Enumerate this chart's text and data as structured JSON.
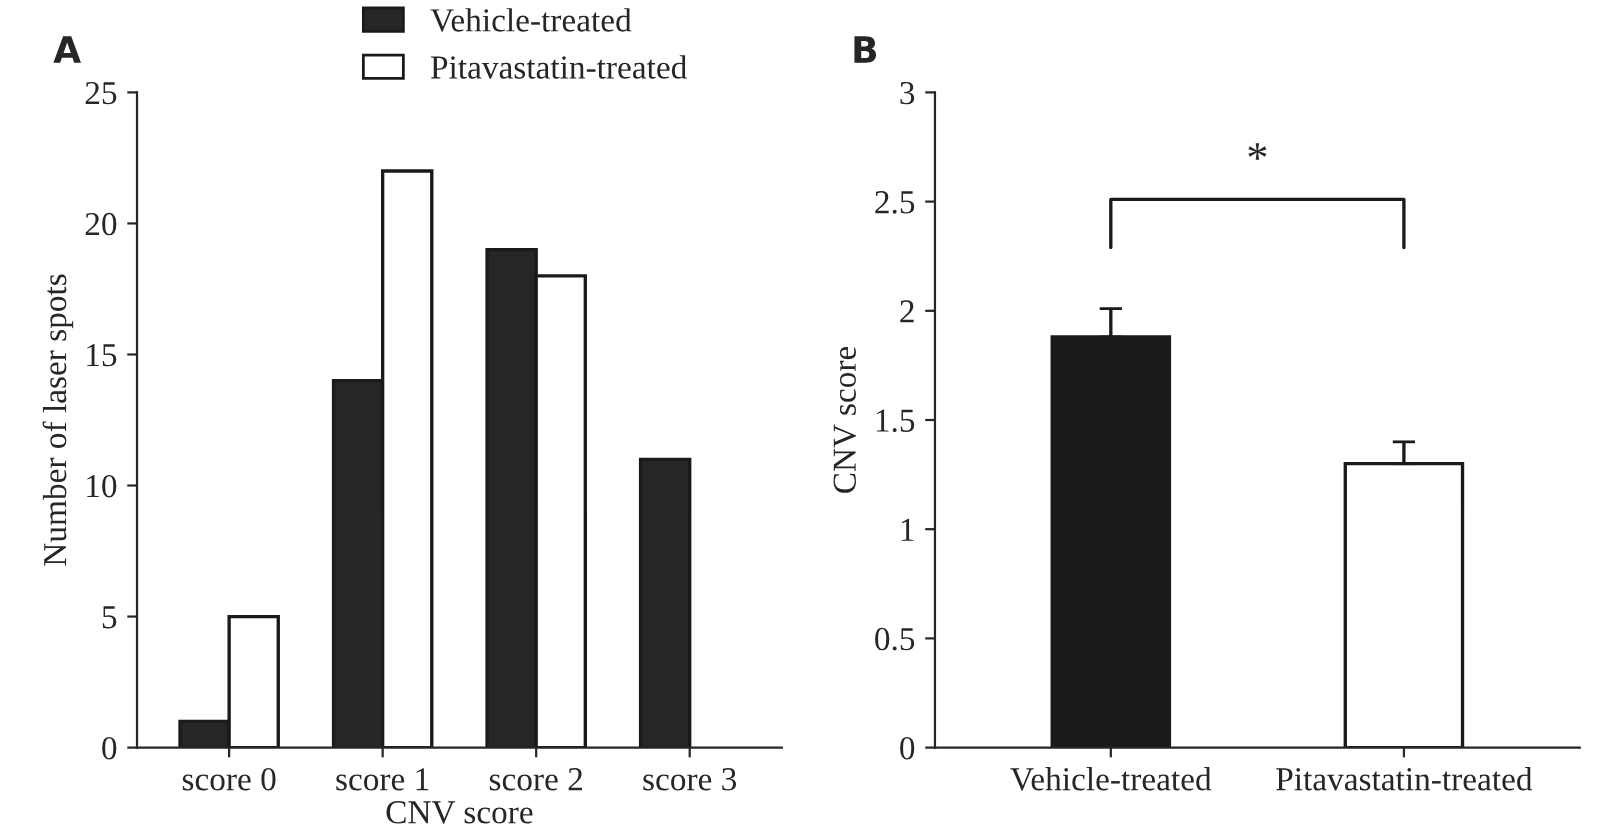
{
  "chart_data": [
    {
      "type": "bar",
      "title": "A",
      "xlabel": "CNV score",
      "ylabel": "Number of laser spots",
      "categories": [
        "score 0",
        "score 1",
        "score 2",
        "score 3"
      ],
      "series": [
        {
          "name": "Vehicle-treated",
          "color": "#262626",
          "values": [
            1,
            14,
            19,
            11
          ]
        },
        {
          "name": "Pitavastatin-treated",
          "color": "#ffffff",
          "values": [
            5,
            22,
            18,
            null
          ]
        }
      ],
      "ylim": [
        0,
        25
      ],
      "yticks": [
        0,
        5,
        10,
        15,
        20,
        25
      ],
      "legend": "top",
      "grid": false
    },
    {
      "type": "bar",
      "title": "B",
      "ylabel": "CNV score",
      "categories": [
        "Vehicle-treated",
        "Pitavastatin-treated"
      ],
      "values": [
        1.88,
        1.3
      ],
      "colors": [
        "#1a1a1a",
        "#ffffff"
      ],
      "errors": [
        [
          1.88,
          2.01
        ],
        [
          1.3,
          1.4
        ]
      ],
      "ylim": [
        0,
        3
      ],
      "yticks": [
        0,
        0.5,
        1,
        1.5,
        2,
        2.5,
        3
      ],
      "annotations": [
        "*"
      ],
      "grid": false
    }
  ]
}
